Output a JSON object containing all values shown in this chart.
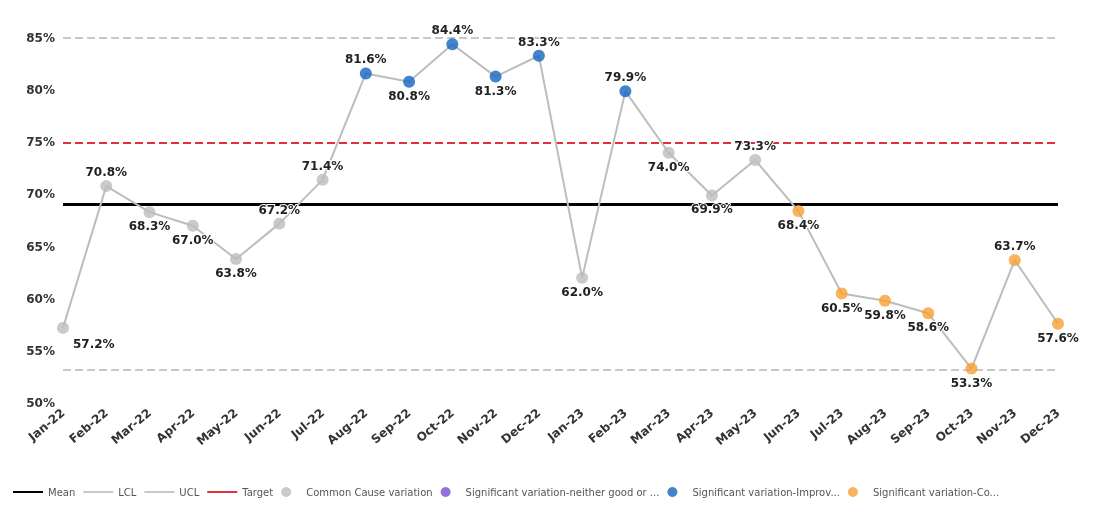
{
  "chart_data": {
    "type": "line",
    "categories": [
      "Jan-22",
      "Feb-22",
      "Mar-22",
      "Apr-22",
      "May-22",
      "Jun-22",
      "Jul-22",
      "Aug-22",
      "Sep-22",
      "Oct-22",
      "Nov-22",
      "Dec-22",
      "Jan-23",
      "Feb-23",
      "Mar-23",
      "Apr-23",
      "May-23",
      "Jun-23",
      "Jul-23",
      "Aug-23",
      "Sep-23",
      "Oct-23",
      "Nov-23",
      "Dec-23"
    ],
    "series": [
      {
        "color": "#bdbdbd",
        "marker": "none",
        "values": [
          57.2,
          70.8,
          68.3,
          67.0,
          63.8,
          67.2,
          71.4,
          81.6,
          80.8,
          84.4,
          81.3,
          83.3,
          62.0,
          79.9,
          74.0,
          69.9,
          73.3,
          68.4,
          60.5,
          59.8,
          58.6,
          53.3,
          63.7,
          57.6
        ],
        "value_labels": [
          "57.2%",
          "70.8%",
          "68.3%",
          "67.0%",
          "63.8%",
          "67.2%",
          "71.4%",
          "81.6%",
          "80.8%",
          "84.4%",
          "81.3%",
          "83.3%",
          "62.0%",
          "79.9%",
          "74.0%",
          "69.9%",
          "73.3%",
          "68.4%",
          "60.5%",
          "59.8%",
          "58.6%",
          "53.3%",
          "63.7%",
          "57.6%"
        ]
      },
      {
        "name": "Common Cause variation",
        "type": "scatter",
        "color": "#bdbdbd",
        "values": [
          57.2,
          70.8,
          68.3,
          67.0,
          63.8,
          67.2,
          71.4,
          null,
          null,
          null,
          null,
          null,
          62.0,
          null,
          74.0,
          69.9,
          73.3,
          null,
          null,
          null,
          null,
          null,
          null,
          null
        ]
      },
      {
        "name": "Significant variation-neither good or ...",
        "type": "scatter",
        "color": "#7b4fd0",
        "values": [
          null,
          null,
          null,
          null,
          null,
          null,
          null,
          null,
          null,
          null,
          null,
          null,
          null,
          null,
          null,
          null,
          null,
          null,
          null,
          null,
          null,
          null,
          null,
          null
        ]
      },
      {
        "name": "Significant variation-Improv...",
        "type": "scatter",
        "color": "#1565c0",
        "values": [
          null,
          null,
          null,
          null,
          null,
          null,
          null,
          81.6,
          80.8,
          84.4,
          81.3,
          83.3,
          null,
          79.9,
          null,
          null,
          null,
          null,
          null,
          null,
          null,
          null,
          null,
          null
        ]
      },
      {
        "name": "Significant variation-Co...",
        "type": "scatter",
        "color": "#f7a033",
        "values": [
          null,
          null,
          null,
          null,
          null,
          null,
          null,
          null,
          null,
          null,
          null,
          null,
          null,
          null,
          null,
          null,
          null,
          68.4,
          60.5,
          59.8,
          58.6,
          53.3,
          63.7,
          57.6
        ]
      }
    ],
    "ref_lines": [
      {
        "axis": "y",
        "value": 69.1,
        "label": "Mean",
        "color": "#000000",
        "line_style": "solid"
      },
      {
        "axis": "y",
        "value": 53.2,
        "label": "LCL",
        "color": "#c8c8c8",
        "line_style": "dashed"
      },
      {
        "axis": "y",
        "value": 85.0,
        "label": "UCL",
        "color": "#c8c8c8",
        "line_style": "dashed"
      },
      {
        "axis": "y",
        "value": 75,
        "label": "Target",
        "color": "#e0303a",
        "line_style": "dashed"
      }
    ],
    "ylim": [
      50,
      85
    ],
    "yticks": [
      {
        "value": 50,
        "label": "50%"
      },
      {
        "value": 55,
        "label": "55%"
      },
      {
        "value": 60,
        "label": "60%"
      },
      {
        "value": 65,
        "label": "65%"
      },
      {
        "value": 70,
        "label": "70%"
      },
      {
        "value": 75,
        "label": "75%"
      },
      {
        "value": 80,
        "label": "80%"
      },
      {
        "value": 85,
        "label": "85%"
      }
    ],
    "grid": false,
    "legend": "bottom left",
    "marker": "circle"
  }
}
